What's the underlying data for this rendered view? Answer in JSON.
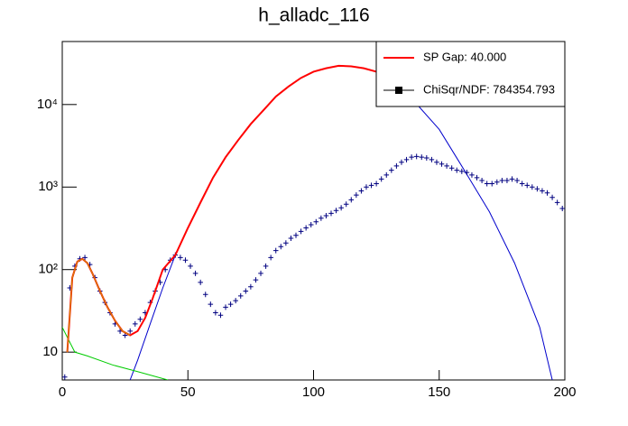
{
  "chart_data": {
    "type": "line",
    "title": "h_alladc_116",
    "xlim": [
      0,
      200
    ],
    "xticks": [
      0,
      50,
      100,
      150,
      200
    ],
    "ylim": [
      4.6,
      58000
    ],
    "log_y": true,
    "yticks": [
      10,
      {
        "value": 100,
        "label": "10²"
      },
      {
        "value": 1000,
        "label": "10³"
      },
      {
        "value": 10000,
        "label": "10⁴"
      }
    ],
    "legend": "top-right",
    "series": [
      {
        "color": "#0000cc",
        "style": "line",
        "x": [
          27,
          30,
          35,
          40,
          45,
          50,
          55,
          60,
          65,
          70,
          75,
          80,
          85,
          90,
          95,
          100,
          105,
          110,
          115,
          120,
          125,
          130,
          140,
          150,
          160,
          170,
          180,
          190,
          195
        ],
        "values": [
          4.6,
          8,
          22,
          60,
          150,
          320,
          650,
          1300,
          2300,
          3700,
          5800,
          8500,
          12500,
          16500,
          21000,
          25000,
          27500,
          29500,
          29000,
          27500,
          25000,
          22000,
          11000,
          5000,
          1600,
          500,
          120,
          20,
          4.6
        ]
      },
      {
        "color": "#00cc00",
        "style": "line",
        "x": [
          0,
          5,
          10,
          20,
          30,
          42
        ],
        "values": [
          20,
          10,
          9,
          7,
          5.8,
          4.6
        ]
      },
      {
        "name": "ChiSqr/NDF: 784354.793",
        "color": "#000080",
        "style": "points",
        "x": [
          1,
          3,
          5,
          7,
          9,
          11,
          13,
          15,
          17,
          19,
          21,
          23,
          25,
          27,
          29,
          31,
          33,
          35,
          37,
          39,
          41,
          43,
          45,
          47,
          49,
          51,
          53,
          55,
          57,
          59,
          61,
          63,
          65,
          67,
          69,
          71,
          73,
          75,
          77,
          79,
          81,
          83,
          85,
          87,
          89,
          91,
          93,
          95,
          97,
          99,
          101,
          103,
          105,
          107,
          109,
          111,
          113,
          115,
          117,
          119,
          121,
          123,
          125,
          127,
          129,
          131,
          133,
          135,
          137,
          139,
          141,
          143,
          145,
          147,
          149,
          151,
          153,
          155,
          157,
          159,
          161,
          163,
          165,
          167,
          169,
          171,
          173,
          175,
          177,
          179,
          181,
          183,
          185,
          187,
          189,
          191,
          193,
          195,
          197,
          199
        ],
        "values": [
          5,
          60,
          110,
          135,
          140,
          115,
          80,
          55,
          40,
          30,
          22,
          18,
          16,
          18,
          22,
          25,
          30,
          40,
          55,
          70,
          100,
          130,
          150,
          140,
          130,
          110,
          90,
          70,
          50,
          38,
          30,
          28,
          35,
          38,
          42,
          48,
          55,
          62,
          75,
          90,
          110,
          140,
          170,
          190,
          210,
          240,
          260,
          290,
          320,
          350,
          380,
          420,
          450,
          480,
          520,
          560,
          620,
          700,
          800,
          900,
          1000,
          1050,
          1100,
          1250,
          1400,
          1600,
          1800,
          2000,
          2150,
          2300,
          2350,
          2300,
          2250,
          2150,
          2000,
          1900,
          1800,
          1700,
          1600,
          1550,
          1500,
          1400,
          1300,
          1200,
          1100,
          1100,
          1150,
          1200,
          1200,
          1250,
          1200,
          1100,
          1050,
          1000,
          950,
          900,
          850,
          750,
          650,
          550
        ]
      },
      {
        "name": "SP Gap: 40.000",
        "color": "#ff0000",
        "style": "line",
        "x": [
          2,
          4,
          6,
          8,
          10,
          12,
          15,
          18,
          21,
          24,
          27,
          30,
          33,
          36,
          40,
          45,
          50,
          55,
          60,
          65,
          70,
          75,
          80,
          85,
          90,
          95,
          100,
          105,
          110,
          115,
          120,
          125
        ],
        "values": [
          10,
          80,
          125,
          135,
          120,
          90,
          55,
          35,
          24,
          18,
          16,
          18,
          26,
          45,
          100,
          150,
          320,
          650,
          1300,
          2300,
          3700,
          5800,
          8500,
          12500,
          16500,
          21000,
          25000,
          27500,
          29500,
          29000,
          27500,
          25000
        ]
      },
      {
        "color": "#cc9900",
        "style": "line",
        "x": [
          2,
          4,
          6,
          8,
          10,
          12,
          15,
          18,
          21,
          24,
          27
        ],
        "values": [
          10,
          80,
          125,
          135,
          120,
          90,
          55,
          35,
          24,
          18,
          16
        ]
      }
    ]
  }
}
